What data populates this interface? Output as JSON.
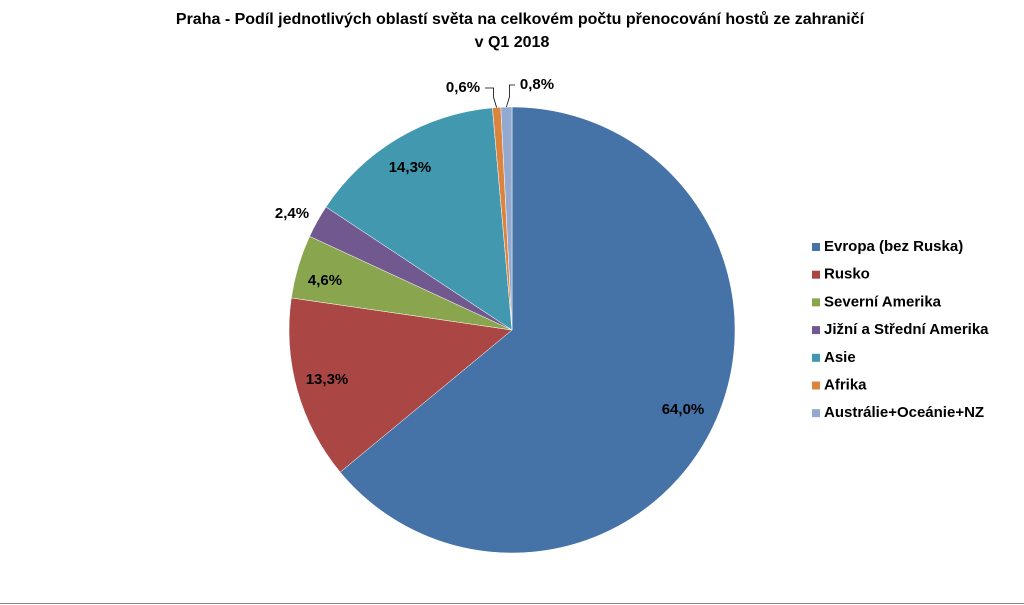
{
  "chart_data": {
    "type": "pie",
    "title": [
      "Praha - Podíl jednotlivých oblastí světa na celkovém počtu přenocování  hostů ze zahraničí",
      "v Q1 2018"
    ],
    "categories": [
      "Evropa (bez Ruska)",
      "Rusko",
      "Severní Amerika",
      "Jižní a Střední Amerika",
      "Asie",
      "Afrika",
      "Austrálie+Oceánie+NZ"
    ],
    "values": [
      64.0,
      13.3,
      4.6,
      2.4,
      14.3,
      0.6,
      0.8
    ],
    "value_labels": [
      "64,0%",
      "13,3%",
      "4,6%",
      "2,4%",
      "14,3%",
      "0,6%",
      "0,8%"
    ],
    "colors": [
      "#4572a7",
      "#aa4643",
      "#89a54e",
      "#71588f",
      "#4198af",
      "#db843d",
      "#93a9cf"
    ],
    "legend": "right"
  }
}
